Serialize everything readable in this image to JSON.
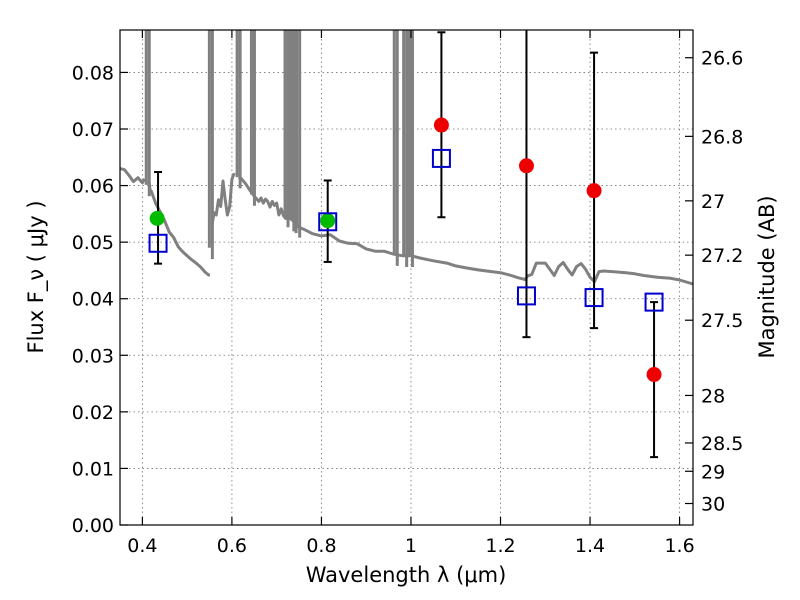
{
  "chart_data": {
    "type": "scatter",
    "xlabel": "Wavelength  λ (μm)",
    "ylabel": "Flux  F_ν ( μJy )",
    "y2label": "Magnitude (AB)",
    "xlim": [
      0.35,
      1.63
    ],
    "ylim": [
      0.0,
      0.0875
    ],
    "grid": true,
    "x_ticks": [
      0.4,
      0.6,
      0.8,
      1.0,
      1.2,
      1.4,
      1.6
    ],
    "x_tick_labels": [
      "0.4",
      "0.6",
      "0.8",
      "1",
      "1.2",
      "1.4",
      "1.6"
    ],
    "y_ticks": [
      0.0,
      0.01,
      0.02,
      0.03,
      0.04,
      0.05,
      0.06,
      0.07,
      0.08
    ],
    "y_tick_labels": [
      "0.00",
      "0.01",
      "0.02",
      "0.03",
      "0.04",
      "0.05",
      "0.06",
      "0.07",
      "0.08"
    ],
    "y2_ticks": [
      {
        "label": "26.6",
        "flux": 0.0826
      },
      {
        "label": "26.8",
        "flux": 0.0687
      },
      {
        "label": "27",
        "flux": 0.0573
      },
      {
        "label": "27.2",
        "flux": 0.0477
      },
      {
        "label": "27.5",
        "flux": 0.0362
      },
      {
        "label": "28",
        "flux": 0.0229
      },
      {
        "label": "28.5",
        "flux": 0.0145
      },
      {
        "label": "29",
        "flux": 0.0095
      },
      {
        "label": "30",
        "flux": 0.0038
      }
    ],
    "series": [
      {
        "marker": "circle",
        "color": "#00bb00",
        "x": [
          0.433,
          0.814
        ],
        "y": [
          0.0542,
          0.0538
        ]
      },
      {
        "marker": "circle",
        "color": "#ee0000",
        "x": [
          1.068,
          1.258,
          1.409,
          1.543
        ],
        "y": [
          0.0707,
          0.0635,
          0.0591,
          0.0266
        ]
      },
      {
        "marker": "open-square",
        "color": "#0000cc",
        "x": [
          0.435,
          0.814,
          1.068,
          1.258,
          1.409,
          1.543
        ],
        "y": [
          0.0498,
          0.0536,
          0.0648,
          0.0405,
          0.0402,
          0.0394
        ]
      }
    ],
    "error_bars": [
      {
        "x": 0.435,
        "low": 0.0462,
        "high": 0.0624
      },
      {
        "x": 0.814,
        "low": 0.0465,
        "high": 0.0609
      },
      {
        "x": 1.068,
        "low": 0.0544,
        "high": 0.0871
      },
      {
        "x": 1.258,
        "low": 0.0332,
        "high": 0.0875
      },
      {
        "x": 1.409,
        "low": 0.0348,
        "high": 0.0835
      },
      {
        "x": 1.543,
        "low": 0.012,
        "high": 0.0394
      }
    ],
    "model_sed": {
      "color": "#808080",
      "x": [
        0.35,
        0.36,
        0.37,
        0.38,
        0.39,
        0.4,
        0.405,
        0.41,
        0.415,
        0.418,
        0.42,
        0.425,
        0.43,
        0.44,
        0.45,
        0.46,
        0.47,
        0.48,
        0.49,
        0.5,
        0.51,
        0.52,
        0.53,
        0.54,
        0.548,
        0.551,
        0.553,
        0.556,
        0.56,
        0.565,
        0.57,
        0.575,
        0.58,
        0.585,
        0.59,
        0.595,
        0.6,
        0.605,
        0.61,
        0.615,
        0.62,
        0.63,
        0.64,
        0.65,
        0.66,
        0.665,
        0.67,
        0.675,
        0.68,
        0.685,
        0.69,
        0.695,
        0.7,
        0.705,
        0.71,
        0.715,
        0.72,
        0.725,
        0.73,
        0.74,
        0.75,
        0.76,
        0.78,
        0.8,
        0.82,
        0.84,
        0.86,
        0.88,
        0.9,
        0.92,
        0.94,
        0.96,
        0.98,
        1.0,
        1.02,
        1.05,
        1.08,
        1.1,
        1.12,
        1.15,
        1.18,
        1.2,
        1.22,
        1.24,
        1.255,
        1.26,
        1.27,
        1.28,
        1.3,
        1.31,
        1.32,
        1.33,
        1.34,
        1.35,
        1.36,
        1.37,
        1.38,
        1.39,
        1.4,
        1.41,
        1.42,
        1.43,
        1.45,
        1.48,
        1.5,
        1.52,
        1.55,
        1.58,
        1.6,
        1.63
      ],
      "y": [
        0.063,
        0.0628,
        0.0618,
        0.0607,
        0.0614,
        0.0605,
        0.0612,
        0.0598,
        0.0606,
        0.0588,
        0.059,
        0.0579,
        0.0568,
        0.0553,
        0.0537,
        0.0518,
        0.0508,
        0.0492,
        0.0483,
        0.0476,
        0.0469,
        0.0463,
        0.0456,
        0.0447,
        0.0442,
        0.0442,
        0.049,
        0.0532,
        0.0552,
        0.0548,
        0.0575,
        0.0563,
        0.0608,
        0.0575,
        0.0548,
        0.0563,
        0.0611,
        0.0622,
        0.0624,
        0.0615,
        0.0613,
        0.0604,
        0.0592,
        0.0581,
        0.0572,
        0.0578,
        0.0569,
        0.0576,
        0.0572,
        0.0562,
        0.0572,
        0.0565,
        0.0569,
        0.0548,
        0.0559,
        0.0547,
        0.0542,
        0.0553,
        0.0542,
        0.0536,
        0.0526,
        0.0523,
        0.0515,
        0.0511,
        0.0513,
        0.0502,
        0.0498,
        0.0497,
        0.0488,
        0.0484,
        0.0484,
        0.0479,
        0.0476,
        0.0476,
        0.0472,
        0.0467,
        0.0463,
        0.0458,
        0.0455,
        0.0451,
        0.0448,
        0.0446,
        0.0442,
        0.0437,
        0.0434,
        0.044,
        0.0443,
        0.0463,
        0.0463,
        0.0452,
        0.0441,
        0.0457,
        0.0464,
        0.0452,
        0.0442,
        0.0457,
        0.0462,
        0.0452,
        0.0438,
        0.043,
        0.0448,
        0.0449,
        0.0448,
        0.0446,
        0.0444,
        0.0441,
        0.0438,
        0.0436,
        0.0433,
        0.0426
      ]
    },
    "model_spikes": [
      0.412,
      0.553,
      0.615,
      0.647,
      0.722,
      0.735,
      0.74,
      0.748,
      0.966,
      0.987,
      1.0
    ],
    "model_gaps": [
      {
        "x0": 0.405,
        "x1": 0.415
      },
      {
        "x0": 0.551,
        "x1": 0.556
      },
      {
        "x0": 0.605,
        "x1": 0.615
      },
      {
        "x0": 0.64,
        "x1": 0.65
      }
    ]
  }
}
